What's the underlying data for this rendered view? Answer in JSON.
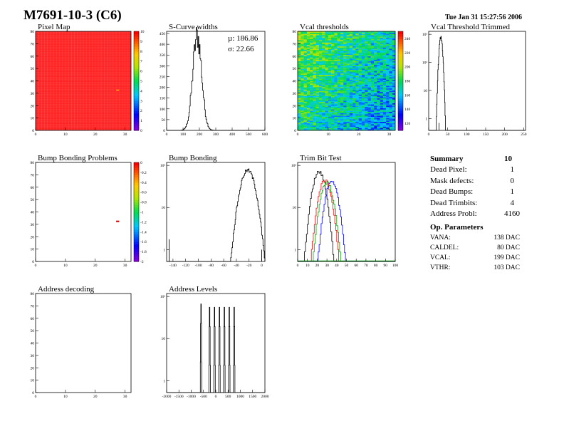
{
  "header": {
    "title": "M7691-10-3 (C6)",
    "timestamp": "Tue Jan 31 15:27:56 2006"
  },
  "panels": {
    "pixel_map": {
      "title": "Pixel Map"
    },
    "scurve": {
      "title": "S-Curve widths",
      "mu": "µ: 186.86",
      "sigma": "σ: 22.66"
    },
    "vcal_thr": {
      "title": "Vcal thresholds"
    },
    "vcal_trim": {
      "title": "Vcal Threshold Trimmed"
    },
    "bump_problems": {
      "title": "Bump Bonding Problems"
    },
    "bump_bonding": {
      "title": "Bump Bonding"
    },
    "trim_bit": {
      "title": "Trim Bit Test"
    },
    "addr_decoding": {
      "title": "Address decoding"
    },
    "addr_levels": {
      "title": "Address Levels"
    }
  },
  "summary": {
    "title": "Summary",
    "count": "10",
    "rows": [
      {
        "label": "Dead Pixel:",
        "value": "1"
      },
      {
        "label": "Mask defects:",
        "value": "0"
      },
      {
        "label": "Dead Bumps:",
        "value": "1"
      },
      {
        "label": "Dead Trimbits:",
        "value": "4"
      },
      {
        "label": "Address Probl:",
        "value": "4160"
      }
    ]
  },
  "op_params": {
    "title": "Op. Parameters",
    "rows": [
      {
        "label": "VANA:",
        "value": "138 DAC"
      },
      {
        "label": "CALDEL:",
        "value": "80 DAC"
      },
      {
        "label": "VCAL:",
        "value": "199 DAC"
      },
      {
        "label": "VTHR:",
        "value": "103 DAC"
      }
    ]
  },
  "chart_data": [
    {
      "type": "heatmap",
      "id": "pixel_map",
      "title": "Pixel Map",
      "xlim": [
        0,
        32
      ],
      "ylim": [
        0,
        80
      ],
      "zlim": [
        0,
        10
      ],
      "xticks": [
        "0",
        "10",
        "20",
        "30"
      ],
      "yticks": [
        "0",
        "10",
        "20",
        "30",
        "40",
        "50",
        "60",
        "70",
        "80"
      ],
      "zticks": [
        "0",
        "1",
        "2",
        "3",
        "4",
        "5",
        "6",
        "7",
        "8",
        "9",
        "10"
      ],
      "fill_value": 10,
      "special_pixels": [
        {
          "x": 27,
          "y": 32,
          "z": 9
        }
      ]
    },
    {
      "type": "bar",
      "id": "scurve",
      "title": "S-Curve widths",
      "xlim": [
        0,
        600
      ],
      "ylim": [
        0,
        460
      ],
      "xticks": [
        "0",
        "100",
        "200",
        "300",
        "400",
        "500",
        "600"
      ],
      "yticks": [
        "0",
        "50",
        "100",
        "150",
        "200",
        "250",
        "300",
        "350",
        "400",
        "450"
      ],
      "mean": 186.86,
      "sigma": 22.66,
      "peak": 440
    },
    {
      "type": "heatmap",
      "id": "vcal_thr",
      "title": "Vcal thresholds",
      "xlim": [
        0,
        32
      ],
      "ylim": [
        0,
        80
      ],
      "zlim": [
        110,
        250
      ],
      "xticks": [
        "0",
        "10",
        "20",
        "30"
      ],
      "yticks": [
        "0",
        "10",
        "20",
        "30",
        "40",
        "50",
        "60",
        "70",
        "80"
      ],
      "zticks": [
        "120",
        "140",
        "160",
        "180",
        "200",
        "220",
        "240"
      ]
    },
    {
      "type": "bar",
      "id": "vcal_trim",
      "title": "Vcal Threshold Trimmed",
      "log_y": true,
      "xlim": [
        0,
        255
      ],
      "ylim": [
        0.5,
        5000
      ],
      "xticks": [
        "0",
        "50",
        "100",
        "150",
        "200",
        "250"
      ],
      "yticks": [
        "1",
        "10",
        "10²",
        "10³"
      ],
      "peak_x": 32,
      "peak": 2800
    },
    {
      "type": "heatmap",
      "id": "bump_problems",
      "title": "Bump Bonding Problems",
      "xlim": [
        0,
        32
      ],
      "ylim": [
        0,
        80
      ],
      "zlim": [
        -2,
        0
      ],
      "xticks": [
        "0",
        "10",
        "20",
        "30"
      ],
      "yticks": [
        "0",
        "10",
        "20",
        "30",
        "40",
        "50",
        "60",
        "70",
        "80"
      ],
      "zticks": [
        "0",
        "-0.2",
        "-0.4",
        "-0.6",
        "-0.8",
        "-1",
        "-1.2",
        "-1.4",
        "-1.6",
        "-1.8",
        "-2"
      ],
      "special_pixels": [
        {
          "x": 27,
          "y": 32,
          "z": -0.1
        }
      ]
    },
    {
      "type": "bar",
      "id": "bump_bonding",
      "title": "Bump Bonding",
      "log_y": true,
      "xlim": [
        -150,
        5
      ],
      "ylim": [
        0.5,
        1500
      ],
      "xticks": [
        "-140",
        "-120",
        "-100",
        "-80",
        "-60",
        "-40",
        "-20",
        "0"
      ],
      "yticks": [
        "1",
        "10",
        "10²"
      ],
      "peak_x": -22,
      "peak": 800
    },
    {
      "type": "line",
      "id": "trim_bit",
      "title": "Trim Bit Test",
      "log_y": true,
      "xlim": [
        0,
        100
      ],
      "ylim": [
        0.5,
        1500
      ],
      "xticks": [
        "0",
        "10",
        "20",
        "30",
        "40",
        "50",
        "60",
        "70",
        "80",
        "90",
        "100"
      ],
      "yticks": [
        "1",
        "10",
        "10²"
      ],
      "series": [
        {
          "color": "#000000",
          "center": 22,
          "peak": 700
        },
        {
          "color": "#ff0000",
          "center": 28,
          "peak": 350
        },
        {
          "color": "#00a000",
          "center": 30,
          "peak": 300
        },
        {
          "color": "#0000ff",
          "center": 35,
          "peak": 300
        }
      ]
    },
    {
      "type": "heatmap",
      "id": "addr_decoding",
      "title": "Address decoding",
      "xlim": [
        0,
        32
      ],
      "ylim": [
        0,
        80
      ],
      "xticks": [
        "0",
        "10",
        "20",
        "30"
      ],
      "yticks": [
        "0",
        "10",
        "20",
        "30",
        "40",
        "50",
        "60",
        "70",
        "80"
      ]
    },
    {
      "type": "bar",
      "id": "addr_levels",
      "title": "Address Levels",
      "log_y": true,
      "xlim": [
        -2000,
        2000
      ],
      "ylim": [
        0.5,
        1500
      ],
      "xticks": [
        "-2000",
        "-1500",
        "-1000",
        "-500",
        "0",
        "500",
        "1000",
        "1500",
        "2000"
      ],
      "yticks": [
        "1",
        "10",
        "10²"
      ],
      "peaks_x": [
        -600,
        -250,
        -50,
        150,
        350,
        550,
        750
      ],
      "peak": 600
    }
  ]
}
